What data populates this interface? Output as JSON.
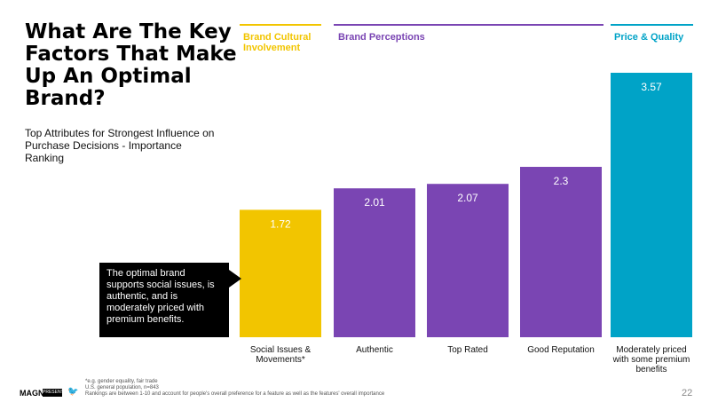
{
  "title": "What Are The Key Factors That Make Up An Optimal Brand?",
  "subtitle": "Top Attributes for Strongest Influence on Purchase Decisions - Importance Ranking",
  "groups": [
    {
      "label": "Brand Cultural Involvement",
      "color": "#F2C500"
    },
    {
      "label": "Brand Perceptions",
      "color": "#7A45B3"
    },
    {
      "label": "Price & Quality",
      "color": "#00A3C7"
    }
  ],
  "callout": "The optimal brand supports social issues, is authentic, and is moderately priced with premium benefits.",
  "footnotes": [
    "*e.g. gender equality, fair trade",
    "U.S. general population, n=843",
    "Rankings are between 1-10 and account for people's overall preference for a feature as well as the features' overall importance"
  ],
  "logos": {
    "brand": "MAGNA",
    "partner": "PRESENTATION"
  },
  "page_number": "22",
  "chart_data": {
    "type": "bar",
    "categories": [
      "Social Issues & Movements*",
      "Authentic",
      "Top Rated",
      "Good Reputation",
      "Moderately priced with some premium benefits"
    ],
    "category_lines": [
      [
        "Social Issues &",
        "Movements*"
      ],
      [
        "Authentic"
      ],
      [
        "Top Rated"
      ],
      [
        "Good Reputation"
      ],
      [
        "Moderately priced",
        "with some premium",
        "benefits"
      ]
    ],
    "values": [
      1.72,
      2.01,
      2.07,
      2.3,
      3.57
    ],
    "value_labels": [
      "1.72",
      "2.01",
      "2.07",
      "2.3",
      "3.57"
    ],
    "colors": [
      "#F2C500",
      "#7A45B3",
      "#7A45B3",
      "#7A45B3",
      "#00A3C7"
    ],
    "ylim": [
      0,
      3.57
    ]
  }
}
